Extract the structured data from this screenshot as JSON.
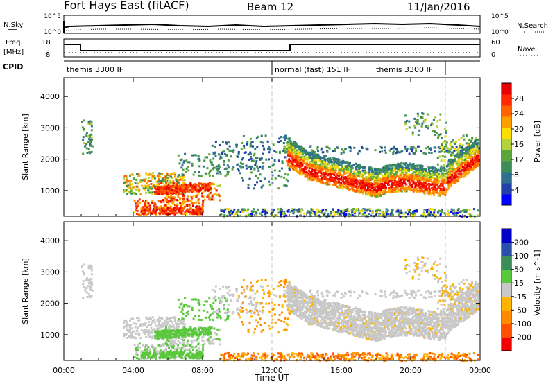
{
  "header": {
    "station": "Fort Hays East (fitACF)",
    "beam": "Beam 12",
    "date": "11/Jan/2016"
  },
  "top_panels": {
    "nsky_label": "N.Sky",
    "nsearch_label": "N.Search",
    "noise_ticks": [
      "10^5",
      "10^0"
    ],
    "freq_label": "Freq.",
    "freq_unit": "[MHz]",
    "freq_ticks": [
      "18",
      "8"
    ],
    "nave_label": "Nave",
    "nave_ticks": [
      "60",
      "0"
    ],
    "cpid_label": "CPID"
  },
  "cpid_segments": [
    {
      "label": "themis 3300 IF",
      "start_hour": 0
    },
    {
      "label": "normal (fast) 151 IF",
      "start_hour": 12
    },
    {
      "label": "themis 3300 IF",
      "start_hour": 22
    }
  ],
  "colors": {
    "power_scale": [
      "#0000ff",
      "#2040a8",
      "#2f6f8f",
      "#3c8c5a",
      "#5aa63c",
      "#b4d23c",
      "#ffdc00",
      "#ffa000",
      "#ff6400",
      "#ff2800",
      "#e60000"
    ],
    "velocity_scale": [
      "#0000c8",
      "#2850aa",
      "#3c8c5a",
      "#5ac83c",
      "#c8c8c8",
      "#ffb400",
      "#ff8c00",
      "#ff5000",
      "#f00000"
    ]
  },
  "chart_data": [
    {
      "type": "heatmap",
      "name": "power",
      "ylabel": "Slant Range [km]",
      "yticks": [
        1000,
        2000,
        3000,
        4000
      ],
      "ylim": [
        180,
        4600
      ],
      "xlim": [
        0,
        24
      ],
      "colorbar": {
        "label": "Power [dB]",
        "ticks": [
          4,
          8,
          12,
          16,
          20,
          24,
          28
        ],
        "range": [
          0,
          32
        ]
      },
      "x_markers": [
        12,
        22
      ]
    },
    {
      "type": "heatmap",
      "name": "velocity",
      "ylabel": "Slant Range [km]",
      "xlabel": "Time UT",
      "yticks": [
        1000,
        2000,
        3000,
        4000
      ],
      "ylim": [
        180,
        4600
      ],
      "xlim": [
        0,
        24
      ],
      "xticks": [
        "00:00",
        "04:00",
        "08:00",
        "12:00",
        "16:00",
        "20:00",
        "00:00"
      ],
      "colorbar": {
        "label": "Velocity [m s^-1]",
        "ticks": [
          "200",
          "100",
          "50",
          "15",
          "-15",
          "-50",
          "-100",
          "-200"
        ]
      },
      "x_markers": [
        12,
        22
      ]
    }
  ]
}
